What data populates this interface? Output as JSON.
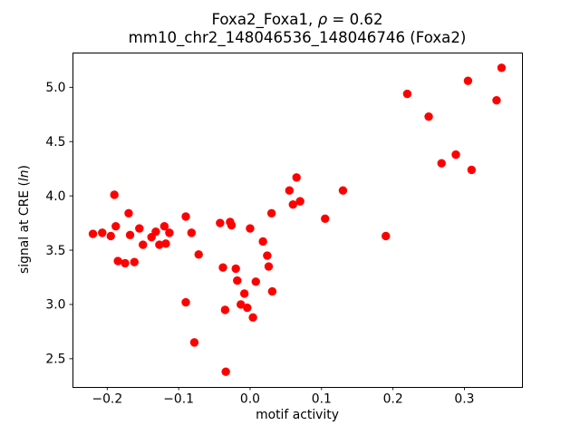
{
  "chart_data": {
    "type": "scatter",
    "title_line1": {
      "prefix": "Foxa2_Foxa1, ",
      "italic": "ρ",
      "suffix": " = 0.62"
    },
    "title_line2": "mm10_chr2_148046536_148046746 (Foxa2)",
    "xlabel": "motif activity",
    "ylabel": {
      "prefix": "signal at CRE (",
      "italic": "ln",
      "suffix": ")"
    },
    "xlim": [
      -0.2486,
      0.3806
    ],
    "ylim": [
      2.24,
      5.32
    ],
    "xticks": [
      -0.2,
      -0.1,
      0.0,
      0.1,
      0.2,
      0.3
    ],
    "yticks": [
      2.5,
      3.0,
      3.5,
      4.0,
      4.5,
      5.0
    ],
    "marker_color": "#ff0000",
    "marker_radius": 4.7,
    "points": [
      [
        -0.22,
        3.65
      ],
      [
        -0.207,
        3.66
      ],
      [
        -0.195,
        3.63
      ],
      [
        -0.19,
        4.01
      ],
      [
        -0.188,
        3.72
      ],
      [
        -0.185,
        3.4
      ],
      [
        -0.175,
        3.38
      ],
      [
        -0.17,
        3.84
      ],
      [
        -0.168,
        3.64
      ],
      [
        -0.162,
        3.39
      ],
      [
        -0.155,
        3.7
      ],
      [
        -0.15,
        3.55
      ],
      [
        -0.138,
        3.62
      ],
      [
        -0.132,
        3.67
      ],
      [
        -0.127,
        3.55
      ],
      [
        -0.12,
        3.72
      ],
      [
        -0.118,
        3.56
      ],
      [
        -0.113,
        3.66
      ],
      [
        -0.09,
        3.81
      ],
      [
        -0.09,
        3.02
      ],
      [
        -0.082,
        3.66
      ],
      [
        -0.078,
        2.65
      ],
      [
        -0.072,
        3.46
      ],
      [
        -0.042,
        3.75
      ],
      [
        -0.038,
        3.34
      ],
      [
        -0.035,
        2.95
      ],
      [
        -0.034,
        2.38
      ],
      [
        -0.028,
        3.76
      ],
      [
        -0.026,
        3.73
      ],
      [
        -0.02,
        3.33
      ],
      [
        -0.018,
        3.22
      ],
      [
        -0.013,
        3.0
      ],
      [
        -0.008,
        3.1
      ],
      [
        -0.004,
        2.97
      ],
      [
        0.0,
        3.7
      ],
      [
        0.004,
        2.88
      ],
      [
        0.008,
        3.21
      ],
      [
        0.018,
        3.58
      ],
      [
        0.024,
        3.45
      ],
      [
        0.026,
        3.35
      ],
      [
        0.03,
        3.84
      ],
      [
        0.031,
        3.12
      ],
      [
        0.055,
        4.05
      ],
      [
        0.06,
        3.92
      ],
      [
        0.065,
        4.17
      ],
      [
        0.07,
        3.95
      ],
      [
        0.105,
        3.79
      ],
      [
        0.13,
        4.05
      ],
      [
        0.19,
        3.63
      ],
      [
        0.22,
        4.94
      ],
      [
        0.25,
        4.73
      ],
      [
        0.268,
        4.3
      ],
      [
        0.288,
        4.38
      ],
      [
        0.305,
        5.06
      ],
      [
        0.31,
        4.24
      ],
      [
        0.345,
        4.88
      ],
      [
        0.352,
        5.18
      ]
    ]
  }
}
